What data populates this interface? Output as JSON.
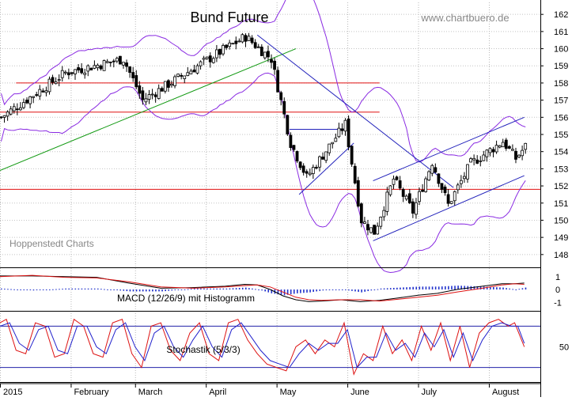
{
  "chart_data": [
    {
      "type": "candlestick",
      "title": "Bund Future",
      "watermark": "www.chartbuero.de",
      "source_label": "Hoppenstedt Charts",
      "ylim": [
        147.3,
        162.7
      ],
      "y_ticks": [
        148,
        149,
        150,
        151,
        152,
        153,
        154,
        155,
        156,
        157,
        158,
        159,
        160,
        161,
        162
      ],
      "x_labels": [
        "2015",
        "February",
        "March",
        "April",
        "May",
        "June",
        "July",
        "August"
      ],
      "x_label_day_index": [
        0,
        22,
        42,
        64,
        86,
        108,
        130,
        152
      ],
      "x_domain_days": [
        0,
        168
      ],
      "grid": true,
      "ohlc_sample": [
        {
          "day": 0,
          "close": 156.0
        },
        {
          "day": 20,
          "close": 158.6
        },
        {
          "day": 38,
          "close": 159.4
        },
        {
          "day": 44,
          "close": 157.0
        },
        {
          "day": 68,
          "close": 159.8
        },
        {
          "day": 76,
          "close": 160.7
        },
        {
          "day": 84,
          "close": 159.4
        },
        {
          "day": 90,
          "close": 154.5
        },
        {
          "day": 95,
          "close": 152.5
        },
        {
          "day": 107,
          "close": 155.6
        },
        {
          "day": 112,
          "close": 150.0
        },
        {
          "day": 116,
          "close": 149.3
        },
        {
          "day": 122,
          "close": 152.4
        },
        {
          "day": 128,
          "close": 150.5
        },
        {
          "day": 134,
          "close": 153.4
        },
        {
          "day": 139,
          "close": 150.9
        },
        {
          "day": 146,
          "close": 153.3
        },
        {
          "day": 156,
          "close": 154.6
        },
        {
          "day": 160,
          "close": 153.6
        },
        {
          "day": 163,
          "close": 154.3
        }
      ],
      "horizontal_levels": [
        {
          "value": 158.0,
          "from_day": 5,
          "to_day": 118,
          "color": "#e01010"
        },
        {
          "value": 156.3,
          "from_day": 0,
          "to_day": 118,
          "color": "#e01010"
        },
        {
          "value": 151.8,
          "from_day": 0,
          "to_day": 168,
          "color": "#e01010"
        }
      ],
      "trend_lines": [
        {
          "points": [
            [
              0,
              152.9
            ],
            [
              92,
              160.0
            ]
          ],
          "color": "#119911"
        },
        {
          "points": [
            [
              80,
              160.8
            ],
            [
              141,
              151.9
            ]
          ],
          "color": "#2222bb"
        },
        {
          "points": [
            [
              90,
              155.3
            ],
            [
              107,
              155.3
            ]
          ],
          "color": "#2222bb"
        },
        {
          "points": [
            [
              93,
              151.5
            ],
            [
              110,
              154.5
            ]
          ],
          "color": "#2222bb"
        },
        {
          "points": [
            [
              116,
              152.3
            ],
            [
              163,
              156.0
            ]
          ],
          "color": "#2222bb"
        },
        {
          "points": [
            [
              116,
              148.8
            ],
            [
              163,
              152.6
            ]
          ],
          "color": "#2222bb"
        }
      ],
      "band_color": "#8a2be2",
      "candle_color": "#000000"
    },
    {
      "type": "line",
      "label": "MACD (12/26/9) mit Histogramm",
      "ylim": [
        -1.6,
        1.6
      ],
      "y_ticks": [
        1,
        0,
        -1
      ],
      "series": [
        {
          "color": "#000000",
          "x": [
            0,
            10,
            20,
            30,
            40,
            50,
            60,
            70,
            76,
            80,
            84,
            88,
            92,
            96,
            100,
            106,
            112,
            118,
            124,
            130,
            136,
            142,
            150,
            156,
            160,
            163
          ],
          "y": [
            1.05,
            1.05,
            1.0,
            0.95,
            0.5,
            0.1,
            0.15,
            0.25,
            0.4,
            0.35,
            0.0,
            -0.5,
            -0.8,
            -0.95,
            -0.9,
            -0.8,
            -0.95,
            -0.85,
            -0.65,
            -0.45,
            -0.3,
            0.0,
            0.25,
            0.45,
            0.45,
            0.5
          ]
        },
        {
          "color": "#dd1111",
          "x": [
            0,
            10,
            20,
            30,
            40,
            50,
            60,
            70,
            76,
            80,
            84,
            88,
            92,
            96,
            100,
            106,
            112,
            118,
            124,
            130,
            136,
            142,
            150,
            156,
            160,
            163
          ],
          "y": [
            1.0,
            1.1,
            0.95,
            0.9,
            0.6,
            0.2,
            0.1,
            0.2,
            0.3,
            0.35,
            0.2,
            -0.2,
            -0.6,
            -0.8,
            -0.85,
            -0.8,
            -0.8,
            -0.9,
            -0.75,
            -0.6,
            -0.45,
            -0.2,
            0.1,
            0.35,
            0.45,
            0.4
          ]
        }
      ],
      "histogram_color": "#2233cc"
    },
    {
      "type": "line",
      "label": "Stochastik (5/3/3)",
      "ylim": [
        0,
        100
      ],
      "y_ticks": [
        50
      ],
      "levels": [
        80,
        20
      ],
      "series": [
        {
          "color": "#dd1111",
          "x": [
            0,
            2,
            5,
            8,
            11,
            14,
            17,
            20,
            23,
            26,
            29,
            32,
            35,
            38,
            41,
            44,
            47,
            50,
            53,
            56,
            59,
            62,
            65,
            68,
            71,
            74,
            77,
            80,
            83,
            86,
            89,
            92,
            95,
            98,
            101,
            104,
            107,
            110,
            113,
            116,
            119,
            122,
            125,
            128,
            131,
            134,
            137,
            140,
            143,
            146,
            149,
            152,
            155,
            158,
            160,
            163
          ],
          "y": [
            85,
            90,
            45,
            40,
            85,
            80,
            35,
            40,
            90,
            80,
            40,
            35,
            85,
            90,
            40,
            20,
            80,
            85,
            45,
            30,
            70,
            85,
            40,
            30,
            85,
            90,
            60,
            40,
            25,
            20,
            15,
            50,
            60,
            40,
            60,
            50,
            85,
            10,
            40,
            30,
            80,
            40,
            60,
            30,
            80,
            45,
            85,
            30,
            80,
            20,
            70,
            85,
            90,
            80,
            85,
            50
          ]
        },
        {
          "color": "#2222cc",
          "x": [
            0,
            3,
            6,
            9,
            12,
            15,
            18,
            21,
            24,
            27,
            30,
            33,
            36,
            39,
            42,
            45,
            48,
            51,
            54,
            57,
            60,
            63,
            66,
            69,
            72,
            75,
            78,
            81,
            84,
            87,
            90,
            93,
            96,
            99,
            102,
            105,
            108,
            111,
            114,
            117,
            120,
            123,
            126,
            129,
            132,
            135,
            138,
            141,
            144,
            147,
            150,
            153,
            156,
            159,
            161,
            163
          ],
          "y": [
            80,
            85,
            55,
            45,
            75,
            80,
            45,
            40,
            80,
            80,
            50,
            40,
            75,
            85,
            50,
            30,
            70,
            80,
            50,
            35,
            60,
            80,
            50,
            35,
            75,
            85,
            65,
            45,
            30,
            25,
            20,
            40,
            55,
            45,
            55,
            55,
            75,
            20,
            35,
            35,
            70,
            45,
            55,
            35,
            70,
            50,
            75,
            35,
            70,
            30,
            60,
            80,
            85,
            80,
            80,
            55
          ]
        }
      ]
    }
  ]
}
